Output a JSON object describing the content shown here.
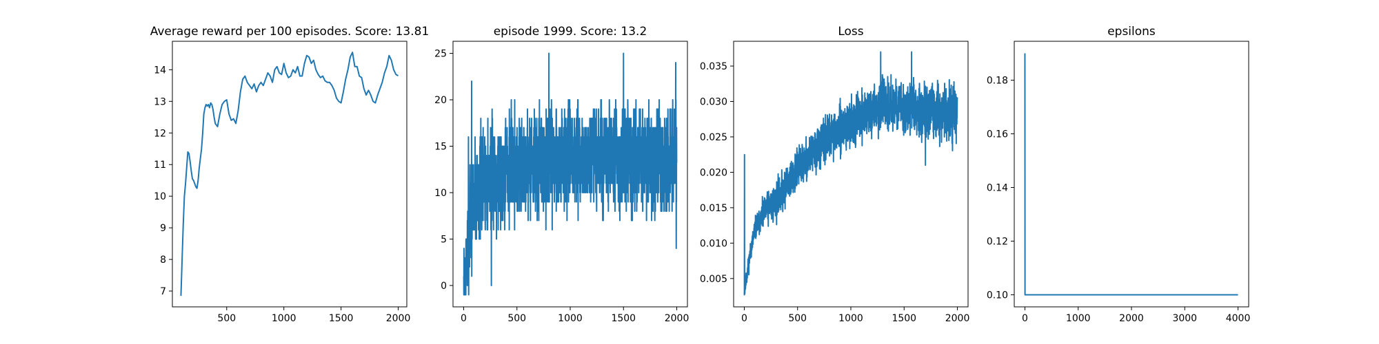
{
  "chart_data": [
    {
      "type": "line",
      "title": "Average reward per 100 episodes. Score: 13.81",
      "xlabel": "",
      "ylabel": "",
      "xlim": [
        25,
        2075
      ],
      "ylim": [
        6.5,
        14.9
      ],
      "xticks": [
        500,
        1000,
        1500,
        2000
      ],
      "yticks": [
        7,
        8,
        9,
        10,
        11,
        12,
        13,
        14
      ],
      "grid": false,
      "color": "#1f77b4",
      "series": [
        {
          "x": [
            100,
            110,
            120,
            130,
            140,
            150,
            160,
            170,
            180,
            190,
            200,
            210,
            220,
            230,
            240,
            250,
            260,
            270,
            280,
            290,
            300,
            310,
            320,
            330,
            340,
            350,
            360,
            370,
            380,
            390,
            400,
            420,
            440,
            460,
            480,
            500,
            520,
            540,
            560,
            580,
            600,
            620,
            640,
            660,
            680,
            700,
            720,
            740,
            760,
            780,
            800,
            820,
            840,
            860,
            880,
            900,
            920,
            940,
            960,
            980,
            1000,
            1020,
            1040,
            1060,
            1080,
            1100,
            1120,
            1140,
            1160,
            1180,
            1200,
            1220,
            1240,
            1260,
            1280,
            1300,
            1320,
            1340,
            1360,
            1380,
            1400,
            1420,
            1440,
            1460,
            1480,
            1500,
            1520,
            1540,
            1560,
            1580,
            1600,
            1620,
            1640,
            1660,
            1680,
            1700,
            1720,
            1740,
            1760,
            1780,
            1800,
            1820,
            1840,
            1860,
            1880,
            1900,
            1920,
            1940,
            1960,
            1980,
            2000
          ],
          "y": [
            6.85,
            8.0,
            9.1,
            10.0,
            10.4,
            10.9,
            11.4,
            11.35,
            11.1,
            10.8,
            10.55,
            10.5,
            10.4,
            10.3,
            10.25,
            10.5,
            10.9,
            11.2,
            11.5,
            12.0,
            12.6,
            12.8,
            12.9,
            12.85,
            12.9,
            12.8,
            12.95,
            12.9,
            12.75,
            12.5,
            12.3,
            12.2,
            12.6,
            12.9,
            13.0,
            13.05,
            12.6,
            12.4,
            12.45,
            12.3,
            12.7,
            13.3,
            13.7,
            13.8,
            13.6,
            13.5,
            13.4,
            13.55,
            13.3,
            13.5,
            13.6,
            13.5,
            13.7,
            13.9,
            13.8,
            13.6,
            14.0,
            14.1,
            13.9,
            13.85,
            14.2,
            13.9,
            13.75,
            13.8,
            14.0,
            13.9,
            14.1,
            13.8,
            13.8,
            14.2,
            14.45,
            14.4,
            14.2,
            14.3,
            14.0,
            13.85,
            13.75,
            13.8,
            13.65,
            13.6,
            13.6,
            13.5,
            13.35,
            13.1,
            13.0,
            12.95,
            13.3,
            13.7,
            14.0,
            14.4,
            14.55,
            14.1,
            14.1,
            13.8,
            13.75,
            13.4,
            13.2,
            13.35,
            13.2,
            13.0,
            12.95,
            13.2,
            13.4,
            13.6,
            13.9,
            14.1,
            14.45,
            14.3,
            14.0,
            13.85,
            13.81
          ]
        }
      ]
    },
    {
      "type": "line",
      "title": "episode 1999. Score: 13.2",
      "xlabel": "",
      "ylabel": "",
      "xlim": [
        -100,
        2100
      ],
      "ylim": [
        -2.3,
        26.3
      ],
      "xticks": [
        0,
        500,
        1000,
        1500,
        2000
      ],
      "yticks": [
        0,
        5,
        10,
        15,
        20,
        25
      ],
      "grid": false,
      "color": "#1f77b4",
      "noise": {
        "n": 2000,
        "seed": 7,
        "mean_x": [
          0,
          20,
          40,
          60,
          100,
          200,
          400,
          800,
          2000
        ],
        "mean_y": [
          0,
          2,
          4.5,
          7,
          10,
          11.5,
          12.8,
          13.5,
          13.5
        ],
        "spread_x": [
          0,
          50,
          2000
        ],
        "spread_y": [
          3,
          5.5,
          5
        ],
        "min": -1,
        "max": 25,
        "fixed": [
          [
            20,
            -1
          ],
          [
            45,
            16
          ],
          [
            60,
            13
          ],
          [
            75,
            22
          ],
          [
            260,
            0
          ],
          [
            800,
            25
          ],
          [
            1500,
            25
          ],
          [
            1990,
            24
          ],
          [
            1995,
            4
          ],
          [
            1999,
            13.2
          ]
        ]
      }
    },
    {
      "type": "line",
      "title": "Loss",
      "xlabel": "",
      "ylabel": "",
      "xlim": [
        -100,
        2100
      ],
      "ylim": [
        0.001,
        0.0385
      ],
      "xticks": [
        0,
        500,
        1000,
        1500,
        2000
      ],
      "yticks": [
        0.005,
        0.01,
        0.015,
        0.02,
        0.025,
        0.03,
        0.035
      ],
      "grid": false,
      "color": "#1f77b4",
      "noise": {
        "n": 2000,
        "seed": 11,
        "mean_x": [
          0,
          15,
          50,
          100,
          200,
          300,
          500,
          800,
          1000,
          1300,
          1600,
          2000
        ],
        "mean_y": [
          0.003,
          0.0045,
          0.008,
          0.012,
          0.0145,
          0.016,
          0.0205,
          0.025,
          0.027,
          0.0295,
          0.029,
          0.028
        ],
        "spread_x": [
          0,
          100,
          300,
          2000
        ],
        "spread_y": [
          0.001,
          0.0015,
          0.0025,
          0.0035
        ],
        "min": 0.0027,
        "max": 0.037,
        "fixed": [
          [
            0,
            0.003
          ],
          [
            2,
            0.0225
          ],
          [
            4,
            0.004
          ],
          [
            1280,
            0.037
          ],
          [
            1570,
            0.037
          ],
          [
            1700,
            0.021
          ]
        ]
      }
    },
    {
      "type": "line",
      "title": "epsilons",
      "xlabel": "",
      "ylabel": "",
      "xlim": [
        -200,
        4200
      ],
      "ylim": [
        0.0955,
        0.1945
      ],
      "xticks": [
        0,
        1000,
        2000,
        3000,
        4000
      ],
      "yticks": [
        0.1,
        0.12,
        0.14,
        0.16,
        0.18
      ],
      "grid": false,
      "color": "#1f77b4",
      "series": [
        {
          "x": [
            0,
            2,
            4000
          ],
          "y": [
            0.19,
            0.1,
            0.1
          ]
        }
      ]
    }
  ]
}
